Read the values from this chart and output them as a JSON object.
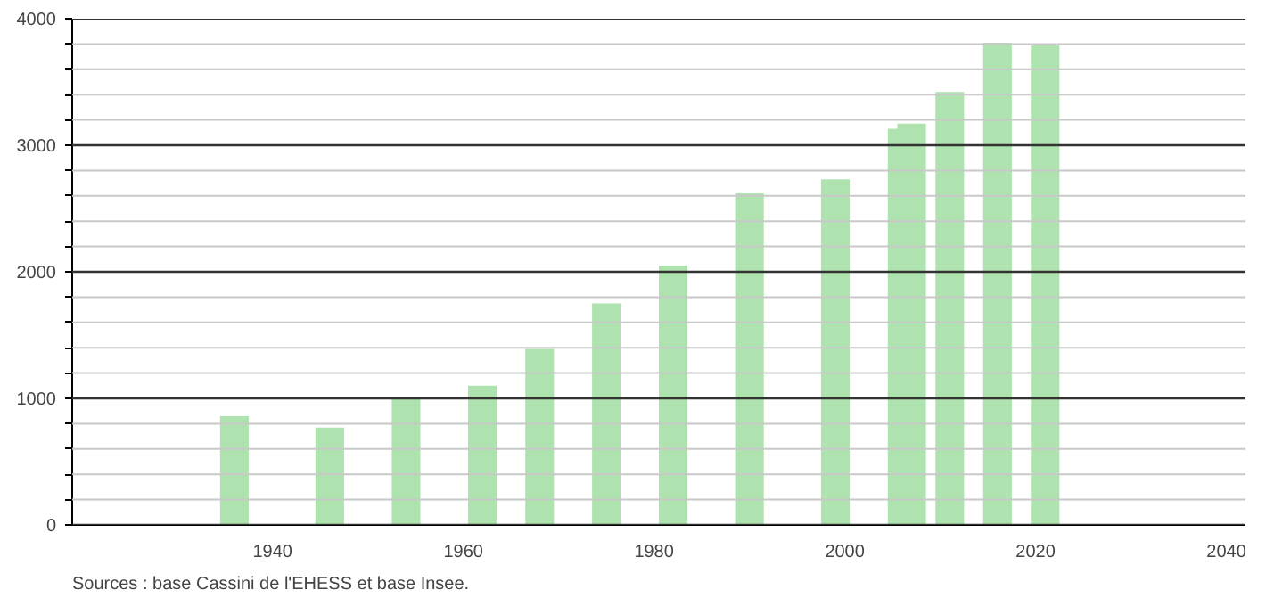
{
  "chart_data": {
    "type": "bar",
    "x": [
      1936,
      1946,
      1954,
      1962,
      1968,
      1975,
      1982,
      1990,
      1999,
      2006,
      2007,
      2011,
      2016,
      2021
    ],
    "values": [
      860,
      770,
      1000,
      1100,
      1390,
      1750,
      2050,
      2620,
      2730,
      3130,
      3170,
      3420,
      3810,
      3790
    ],
    "color": "#aee2ae",
    "xlim": [
      1919,
      2042
    ],
    "xticks": [
      1940,
      1960,
      1980,
      2000,
      2020,
      2040
    ],
    "ylim": [
      0,
      4000
    ],
    "yticks": [
      0,
      {
        "value": 200,
        "label": null
      },
      {
        "value": 400,
        "label": null
      },
      {
        "value": 600,
        "label": null
      },
      {
        "value": 800,
        "label": null
      },
      1000,
      {
        "value": 1200,
        "label": null
      },
      {
        "value": 1400,
        "label": null
      },
      {
        "value": 1600,
        "label": null
      },
      {
        "value": 1800,
        "label": null
      },
      2000,
      {
        "value": 2200,
        "label": null
      },
      {
        "value": 2400,
        "label": null
      },
      {
        "value": 2600,
        "label": null
      },
      {
        "value": 2800,
        "label": null
      },
      3000,
      {
        "value": 3200,
        "label": null
      },
      {
        "value": 3400,
        "label": null
      },
      {
        "value": 3600,
        "label": null
      },
      {
        "value": 3800,
        "label": null
      },
      4000
    ],
    "grid": "y",
    "annotations": [
      "Sources : base Cassini de l'EHESS et base Insee."
    ]
  }
}
